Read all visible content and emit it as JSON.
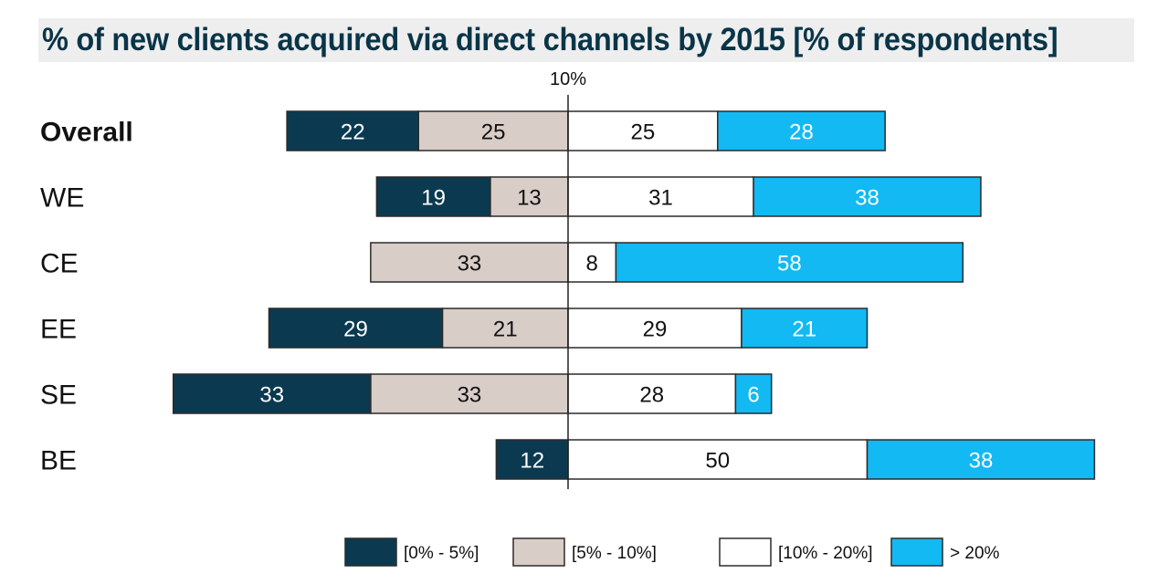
{
  "chart_data": {
    "type": "bar",
    "stacked": "diverging",
    "title": "% of new clients acquired via direct channels by 2015 [% of respondents]",
    "reference_label": "10%",
    "categories": [
      "Overall",
      "WE",
      "CE",
      "EE",
      "SE",
      "BE"
    ],
    "series": [
      {
        "name": "[0% - 5%]",
        "side": "left",
        "color": "#0b3a50",
        "text_color": "#ffffff",
        "values": [
          22,
          19,
          0,
          29,
          33,
          12
        ]
      },
      {
        "name": "[5% - 10%]",
        "side": "left",
        "color": "#d9cdc8",
        "text_color": "#111111",
        "values": [
          25,
          13,
          33,
          21,
          33,
          0
        ]
      },
      {
        "name": "[10% - 20%]",
        "side": "right",
        "color": "#ffffff",
        "text_color": "#111111",
        "values": [
          25,
          31,
          8,
          29,
          28,
          50
        ]
      },
      {
        "name": "> 20%",
        "side": "right",
        "color": "#12b9f2",
        "text_color": "#ffffff",
        "values": [
          28,
          38,
          58,
          21,
          6,
          38
        ]
      }
    ],
    "legend_position": "bottom",
    "grid": false
  }
}
